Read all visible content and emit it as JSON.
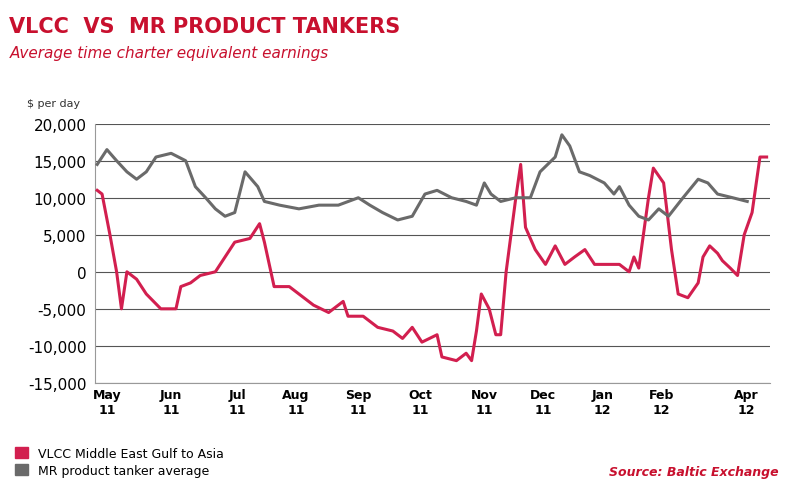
{
  "chart_data": {
    "type": "line",
    "title": "VLCC  VS  MR PRODUCT TANKERS",
    "subtitle": "Average time charter equivalent earnings",
    "y_label": "$ per day",
    "source": "Source: Baltic Exchange",
    "xlim": [
      -0.2,
      10.95
    ],
    "xticks": [
      {
        "value": 0,
        "label": "May\n11"
      },
      {
        "value": 1.06,
        "label": "Jun\n11"
      },
      {
        "value": 2.15,
        "label": "Jul\n11"
      },
      {
        "value": 3.12,
        "label": "Aug\n11"
      },
      {
        "value": 4.15,
        "label": "Sep\n11"
      },
      {
        "value": 5.17,
        "label": "Oct\n11"
      },
      {
        "value": 6.23,
        "label": "Nov\n11"
      },
      {
        "value": 7.2,
        "label": "Dec\n11"
      },
      {
        "value": 8.18,
        "label": "Jan\n12"
      },
      {
        "value": 9.15,
        "label": "Feb\n12"
      },
      {
        "value": 10.55,
        "label": "Apr\n12"
      }
    ],
    "ylim": [
      -15000,
      20000
    ],
    "yticks": [
      {
        "value": -15000,
        "label": "-15,000"
      },
      {
        "value": -10000,
        "label": "-10,000"
      },
      {
        "value": -5000,
        "label": "-5,000"
      },
      0,
      {
        "value": 5000,
        "label": "5,000"
      },
      {
        "value": 10000,
        "label": "10,000"
      },
      {
        "value": 15000,
        "label": "15,000"
      },
      {
        "value": 20000,
        "label": "20,000"
      }
    ],
    "grid": true,
    "legend": "lower left",
    "series": [
      {
        "name": "VLCC Middle East Gulf to Asia",
        "color": "#d21f4f",
        "x": [
          -0.16,
          -0.08,
          0.05,
          0.16,
          0.24,
          0.33,
          0.49,
          0.65,
          0.89,
          1.14,
          1.22,
          1.38,
          1.54,
          1.79,
          1.95,
          2.11,
          2.36,
          2.52,
          2.6,
          2.76,
          3.01,
          3.17,
          3.41,
          3.66,
          3.9,
          3.98,
          4.23,
          4.47,
          4.72,
          4.88,
          5.04,
          5.2,
          5.45,
          5.53,
          5.77,
          5.93,
          6.02,
          6.1,
          6.18,
          6.31,
          6.42,
          6.5,
          6.59,
          6.75,
          6.83,
          6.91,
          7.07,
          7.24,
          7.4,
          7.56,
          7.72,
          7.89,
          8.05,
          8.21,
          8.46,
          8.62,
          8.7,
          8.78,
          8.94,
          9.02,
          9.19,
          9.32,
          9.43,
          9.59,
          9.76,
          9.84,
          9.95,
          10.08,
          10.16,
          10.29,
          10.41,
          10.52,
          10.65,
          10.78,
          10.89
        ],
        "values": [
          11000,
          10500,
          5000,
          0,
          -5000,
          0,
          -1000,
          -3000,
          -5000,
          -5000,
          -2000,
          -1500,
          -500,
          0,
          2000,
          4000,
          4500,
          6500,
          4000,
          -2000,
          -2000,
          -3000,
          -4500,
          -5500,
          -4000,
          -6000,
          -6000,
          -7500,
          -8000,
          -9000,
          -7500,
          -9500,
          -8500,
          -11500,
          -12000,
          -11000,
          -12000,
          -8000,
          -3000,
          -5000,
          -8500,
          -8500,
          0,
          10000,
          14500,
          6000,
          3000,
          1000,
          3500,
          1000,
          2000,
          3000,
          1000,
          1000,
          1000,
          0,
          2000,
          500,
          10000,
          14000,
          12000,
          3000,
          -3000,
          -3500,
          -1500,
          2000,
          3500,
          2500,
          1500,
          500,
          -500,
          5000,
          8000,
          15500,
          15500
        ]
      },
      {
        "name": "MR product tanker average",
        "color": "#6a6a6a",
        "x": [
          -0.16,
          0.0,
          0.16,
          0.33,
          0.49,
          0.65,
          0.81,
          1.06,
          1.3,
          1.46,
          1.63,
          1.79,
          1.95,
          2.11,
          2.28,
          2.49,
          2.6,
          2.85,
          3.17,
          3.5,
          3.82,
          4.15,
          4.34,
          4.55,
          4.8,
          5.04,
          5.25,
          5.45,
          5.69,
          5.93,
          6.1,
          6.23,
          6.34,
          6.5,
          6.75,
          6.99,
          7.15,
          7.4,
          7.51,
          7.64,
          7.8,
          7.97,
          8.21,
          8.37,
          8.46,
          8.62,
          8.78,
          8.94,
          9.11,
          9.27,
          9.51,
          9.76,
          9.92,
          10.08,
          10.33,
          10.57
        ],
        "values": [
          14500,
          16500,
          15000,
          13500,
          12500,
          13500,
          15500,
          16000,
          15000,
          11500,
          10000,
          8500,
          7500,
          8000,
          13500,
          11500,
          9500,
          9000,
          8500,
          9000,
          9000,
          10000,
          9000,
          8000,
          7000,
          7500,
          10500,
          11000,
          10000,
          9500,
          9000,
          12000,
          10500,
          9500,
          10000,
          10000,
          13500,
          15500,
          18500,
          17000,
          13500,
          13000,
          12000,
          10500,
          11500,
          9000,
          7500,
          7000,
          8500,
          7500,
          10000,
          12500,
          12000,
          10500,
          10000,
          9500
        ]
      }
    ]
  }
}
